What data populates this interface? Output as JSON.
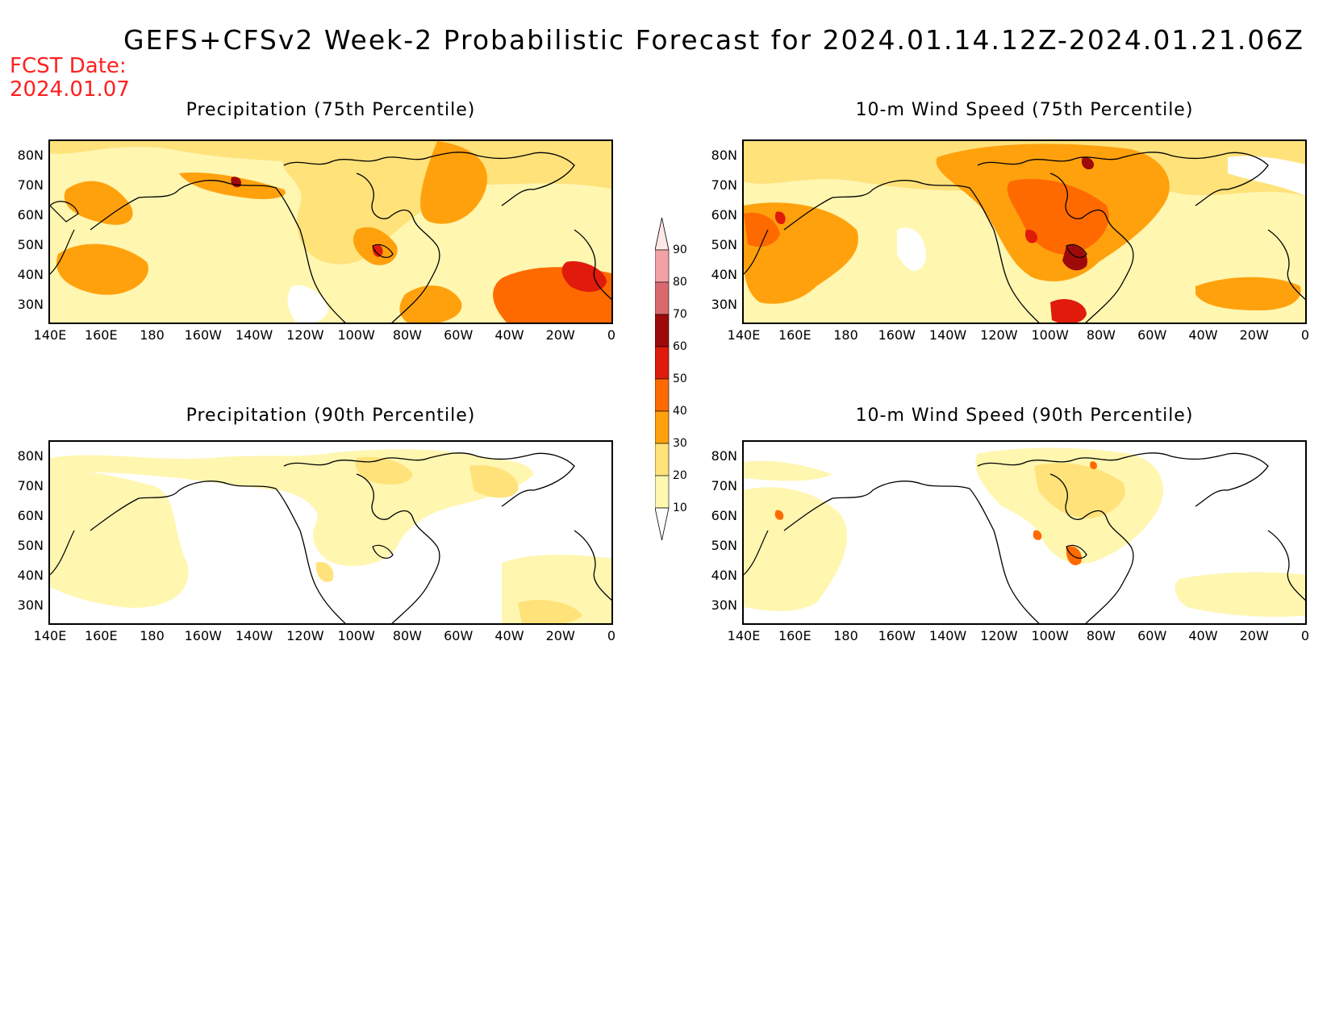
{
  "header": {
    "title": "GEFS+CFSv2 Week-2 Probabilistic Forecast for 2024.01.14.12Z-2024.01.21.06Z",
    "fcst_line1": "FCST Date:",
    "fcst_line2": "2024.01.07"
  },
  "panels": [
    {
      "id": "precip75",
      "title": "Precipitation (75th Percentile)"
    },
    {
      "id": "wind75",
      "title": "10-m Wind Speed (75th Percentile)"
    },
    {
      "id": "precip90",
      "title": "Precipitation (90th Percentile)"
    },
    {
      "id": "wind90",
      "title": "10-m Wind Speed (90th Percentile)"
    }
  ],
  "axes": {
    "lat_labels": [
      "80N",
      "70N",
      "60N",
      "50N",
      "40N",
      "30N"
    ],
    "lon_labels": [
      "140E",
      "160E",
      "180",
      "160W",
      "140W",
      "120W",
      "100W",
      "80W",
      "60W",
      "40W",
      "20W",
      "0"
    ]
  },
  "colorbar": {
    "labels": [
      "90",
      "80",
      "70",
      "60",
      "50",
      "40",
      "30",
      "20",
      "10"
    ],
    "colors": [
      "#fde7e7",
      "#f2a2a6",
      "#d86a6e",
      "#9e0a0a",
      "#e01b0b",
      "#ff6a00",
      "#ffa10d",
      "#ffe27a",
      "#fff6b0"
    ]
  }
}
